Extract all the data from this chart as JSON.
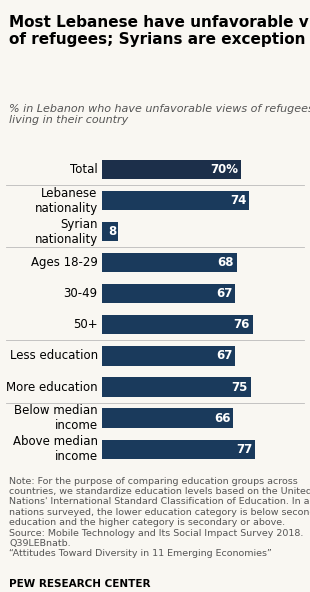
{
  "title": "Most Lebanese have unfavorable views\nof refugees; Syrians are exception",
  "categories": [
    "Total",
    "Lebanese\nnationality",
    "Syrian\nnationality",
    "Ages 18-29",
    "30-49",
    "50+",
    "Less education",
    "More education",
    "Below median\nincome",
    "Above median\nincome"
  ],
  "values": [
    70,
    74,
    8,
    68,
    67,
    76,
    67,
    75,
    66,
    77
  ],
  "bar_color_dark": "#1c2f4a",
  "bar_color_mid": "#1f4068",
  "bar_color": "#1a3a5c",
  "value_color": "#ffffff",
  "background_color": "#f9f7f2",
  "title_fontsize": 11.0,
  "subtitle_fontsize": 8.0,
  "bar_label_fontsize": 8.5,
  "category_fontsize": 8.5,
  "note_fontsize": 6.8,
  "footer_fontsize": 7.5,
  "xlim": [
    0,
    100
  ],
  "note_text": "Note: For the purpose of comparing education groups across\ncountries, we standardize education levels based on the United\nNations' International Standard Classification of Education. In all\nnations surveyed, the lower education category is below secondary\neducation and the higher category is secondary or above.\nSource: Mobile Technology and Its Social Impact Survey 2018.\nQ39LEBnatb.\n“Attitudes Toward Diversity in 11 Emerging Economies”",
  "footer": "PEW RESEARCH CENTER",
  "separator_after_indices": [
    0,
    2,
    5,
    7
  ]
}
